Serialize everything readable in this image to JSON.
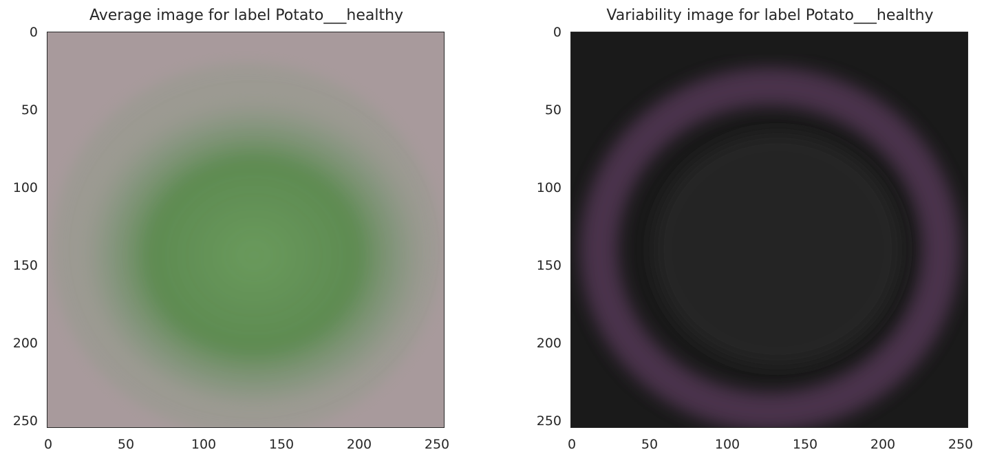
{
  "chart_data": [
    {
      "type": "heatmap",
      "title": "Average image for label Potato___healthy",
      "xlim": [
        0,
        256
      ],
      "ylim": [
        256,
        0
      ],
      "x_ticks": [
        "0",
        "50",
        "100",
        "150",
        "200",
        "250"
      ],
      "y_ticks": [
        "0",
        "50",
        "100",
        "150",
        "200",
        "250"
      ],
      "background_color": "#a89a9c",
      "blob_color": "#5a8a4e",
      "description_values": {
        "center_x": 128,
        "center_y": 140,
        "rx": 110,
        "ry": 100
      }
    },
    {
      "type": "heatmap",
      "title": "Variability image for label Potato___healthy",
      "xlim": [
        0,
        256
      ],
      "ylim": [
        256,
        0
      ],
      "x_ticks": [
        "0",
        "50",
        "100",
        "150",
        "200",
        "250"
      ],
      "y_ticks": [
        "0",
        "50",
        "100",
        "150",
        "200",
        "250"
      ],
      "background_color": "#1a1a1a",
      "ring_color": "#5a3a5c",
      "description_values": {
        "center_x": 128,
        "center_y": 140,
        "rx": 120,
        "ry": 110
      }
    }
  ]
}
